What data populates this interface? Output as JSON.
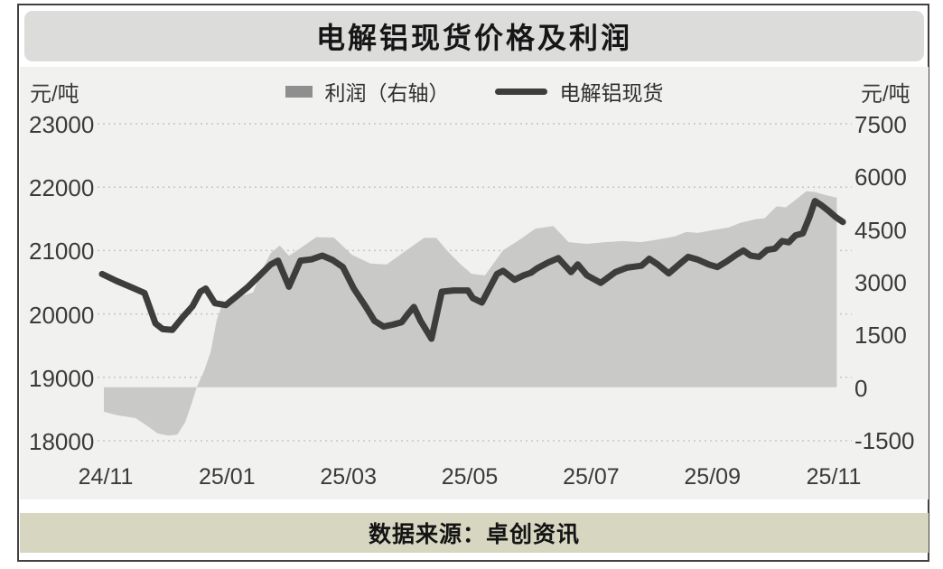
{
  "page": {
    "source_bar": {
      "text": "数据来源：卓创资讯"
    }
  },
  "chart_data": {
    "type": "line",
    "subtype": "line-with-area-combo",
    "title": "电解铝现货价格及利润",
    "x_unit": "months_since_2024-11",
    "x_axis": {
      "tick_labels": [
        "24/11",
        "25/01",
        "25/03",
        "25/05",
        "25/07",
        "25/09",
        "25/11"
      ],
      "tick_positions_months": [
        0,
        2,
        4,
        6,
        8,
        10,
        12
      ]
    },
    "left_axis": {
      "unit": "元/吨",
      "tick_labels": [
        "23000",
        "22000",
        "21000",
        "20000",
        "19000",
        "18000"
      ],
      "ticks": [
        23000,
        22000,
        21000,
        20000,
        19000,
        18000
      ],
      "min": 18000,
      "max": 23000
    },
    "right_axis": {
      "unit": "元/吨",
      "tick_labels": [
        "7500",
        "6000",
        "4500",
        "3000",
        "1500",
        "0",
        "-1500"
      ],
      "ticks": [
        7500,
        6000,
        4500,
        3000,
        1500,
        0,
        -1500
      ],
      "min": -1500,
      "max": 7500
    },
    "legend": [
      {
        "label": "利润（右轴）",
        "swatch": "area",
        "color": "#8e8e8e"
      },
      {
        "label": "电解铝现货",
        "swatch": "line",
        "color": "#3d3d3d"
      }
    ],
    "grid": "dotted-horizontal",
    "legend_position": "top-center",
    "colors": {
      "area_fill": "#c9c9c8",
      "line_stroke": "#3d3d3d",
      "gridline": "#c5c5c3",
      "panel_bg": "#f1f1f0",
      "title_bar_bg": "#dcdcdb",
      "source_bar_bg": "#d7d7c1",
      "frame_border": "#414141"
    },
    "series": [
      {
        "name": "利润（右轴）",
        "type": "area",
        "axis": "right",
        "baseline": 0,
        "points": [
          [
            -0.03,
            -700
          ],
          [
            0.19,
            -800
          ],
          [
            0.49,
            -880
          ],
          [
            0.68,
            -1100
          ],
          [
            0.86,
            -1320
          ],
          [
            1.03,
            -1380
          ],
          [
            1.18,
            -1350
          ],
          [
            1.31,
            -1000
          ],
          [
            1.41,
            -500
          ],
          [
            1.5,
            0
          ],
          [
            1.62,
            450
          ],
          [
            1.73,
            1000
          ],
          [
            1.83,
            1900
          ],
          [
            1.93,
            2400
          ],
          [
            2.13,
            2540
          ],
          [
            2.43,
            2700
          ],
          [
            2.57,
            3300
          ],
          [
            2.72,
            3820
          ],
          [
            2.87,
            4030
          ],
          [
            3.02,
            3740
          ],
          [
            3.2,
            3950
          ],
          [
            3.47,
            4270
          ],
          [
            3.76,
            4260
          ],
          [
            4.06,
            3770
          ],
          [
            4.36,
            3520
          ],
          [
            4.63,
            3490
          ],
          [
            4.96,
            3900
          ],
          [
            5.25,
            4250
          ],
          [
            5.45,
            4250
          ],
          [
            5.62,
            3900
          ],
          [
            5.85,
            3500
          ],
          [
            6.03,
            3230
          ],
          [
            6.25,
            3180
          ],
          [
            6.55,
            3900
          ],
          [
            6.79,
            4160
          ],
          [
            7.08,
            4510
          ],
          [
            7.38,
            4590
          ],
          [
            7.63,
            4130
          ],
          [
            7.93,
            4080
          ],
          [
            8.23,
            4130
          ],
          [
            8.53,
            4160
          ],
          [
            8.82,
            4130
          ],
          [
            9.02,
            4180
          ],
          [
            9.38,
            4290
          ],
          [
            9.57,
            4420
          ],
          [
            9.76,
            4390
          ],
          [
            10.01,
            4470
          ],
          [
            10.27,
            4550
          ],
          [
            10.46,
            4680
          ],
          [
            10.71,
            4780
          ],
          [
            10.86,
            4810
          ],
          [
            11.06,
            5150
          ],
          [
            11.21,
            5120
          ],
          [
            11.4,
            5370
          ],
          [
            11.55,
            5580
          ],
          [
            11.7,
            5550
          ],
          [
            11.88,
            5460
          ],
          [
            12.05,
            5400
          ]
        ]
      },
      {
        "name": "电解铝现货",
        "type": "line",
        "axis": "left",
        "points": [
          [
            -0.06,
            20630
          ],
          [
            0.18,
            20520
          ],
          [
            0.4,
            20430
          ],
          [
            0.64,
            20330
          ],
          [
            0.82,
            19850
          ],
          [
            0.94,
            19760
          ],
          [
            1.1,
            19750
          ],
          [
            1.28,
            19960
          ],
          [
            1.43,
            20120
          ],
          [
            1.56,
            20350
          ],
          [
            1.65,
            20400
          ],
          [
            1.8,
            20170
          ],
          [
            1.98,
            20140
          ],
          [
            2.16,
            20280
          ],
          [
            2.35,
            20430
          ],
          [
            2.53,
            20600
          ],
          [
            2.72,
            20780
          ],
          [
            2.84,
            20840
          ],
          [
            3.02,
            20430
          ],
          [
            3.21,
            20840
          ],
          [
            3.39,
            20860
          ],
          [
            3.57,
            20920
          ],
          [
            3.74,
            20850
          ],
          [
            3.91,
            20740
          ],
          [
            4.09,
            20400
          ],
          [
            4.29,
            20110
          ],
          [
            4.43,
            19890
          ],
          [
            4.58,
            19800
          ],
          [
            4.73,
            19830
          ],
          [
            4.88,
            19870
          ],
          [
            4.99,
            20010
          ],
          [
            5.08,
            20110
          ],
          [
            5.19,
            19890
          ],
          [
            5.37,
            19610
          ],
          [
            5.54,
            20350
          ],
          [
            5.73,
            20370
          ],
          [
            5.97,
            20370
          ],
          [
            6.05,
            20250
          ],
          [
            6.2,
            20180
          ],
          [
            6.45,
            20630
          ],
          [
            6.55,
            20680
          ],
          [
            6.74,
            20540
          ],
          [
            6.89,
            20610
          ],
          [
            7.01,
            20650
          ],
          [
            7.11,
            20720
          ],
          [
            7.29,
            20810
          ],
          [
            7.46,
            20880
          ],
          [
            7.67,
            20660
          ],
          [
            7.78,
            20780
          ],
          [
            7.93,
            20610
          ],
          [
            8.16,
            20490
          ],
          [
            8.4,
            20660
          ],
          [
            8.59,
            20730
          ],
          [
            8.83,
            20760
          ],
          [
            8.96,
            20870
          ],
          [
            9.1,
            20780
          ],
          [
            9.28,
            20640
          ],
          [
            9.45,
            20780
          ],
          [
            9.6,
            20900
          ],
          [
            9.75,
            20860
          ],
          [
            9.94,
            20780
          ],
          [
            10.08,
            20740
          ],
          [
            10.24,
            20830
          ],
          [
            10.39,
            20930
          ],
          [
            10.51,
            21000
          ],
          [
            10.63,
            20920
          ],
          [
            10.77,
            20900
          ],
          [
            10.9,
            21010
          ],
          [
            11.03,
            21030
          ],
          [
            11.15,
            21150
          ],
          [
            11.26,
            21130
          ],
          [
            11.37,
            21240
          ],
          [
            11.49,
            21270
          ],
          [
            11.6,
            21530
          ],
          [
            11.69,
            21780
          ],
          [
            11.79,
            21720
          ],
          [
            11.91,
            21630
          ],
          [
            12.03,
            21530
          ],
          [
            12.15,
            21450
          ]
        ]
      }
    ]
  }
}
